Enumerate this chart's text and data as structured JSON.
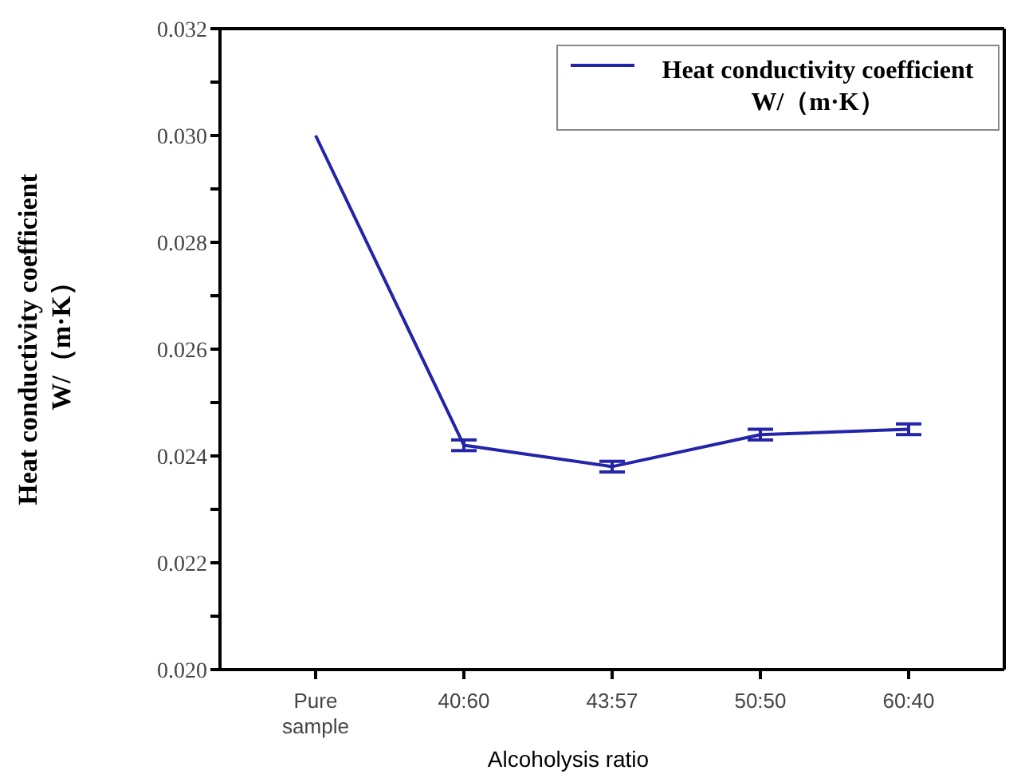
{
  "chart_data": {
    "type": "line",
    "xlabel": "Alcoholysis ratio",
    "ylabel": "Heat conductivity coefficient W/（m·K）",
    "categories": [
      "Pure sample",
      "40:60",
      "43:57",
      "50:50",
      "60:40"
    ],
    "series": [
      {
        "name": "Heat conductivity coefficient W/（m·K）",
        "color": "#2424a8",
        "values": [
          0.03,
          0.0242,
          0.0238,
          0.0244,
          0.0245
        ],
        "errors": [
          null,
          0.0001,
          0.0001,
          0.0001,
          0.0001
        ]
      }
    ],
    "ylim": [
      0.02,
      0.032
    ],
    "yticks": [
      {
        "value": 0.02,
        "label": "0.020"
      },
      {
        "value": 0.021,
        "label": null
      },
      0.022,
      {
        "value": 0.023,
        "label": null
      },
      0.024,
      {
        "value": 0.025,
        "label": null
      },
      0.026,
      {
        "value": 0.027,
        "label": null
      },
      0.028,
      {
        "value": 0.029,
        "label": null
      },
      {
        "value": 0.03,
        "label": "0.030"
      },
      {
        "value": 0.031,
        "label": null
      },
      0.032
    ],
    "grid": false,
    "legend": "top right",
    "marker": "none",
    "line_style": "solid"
  }
}
